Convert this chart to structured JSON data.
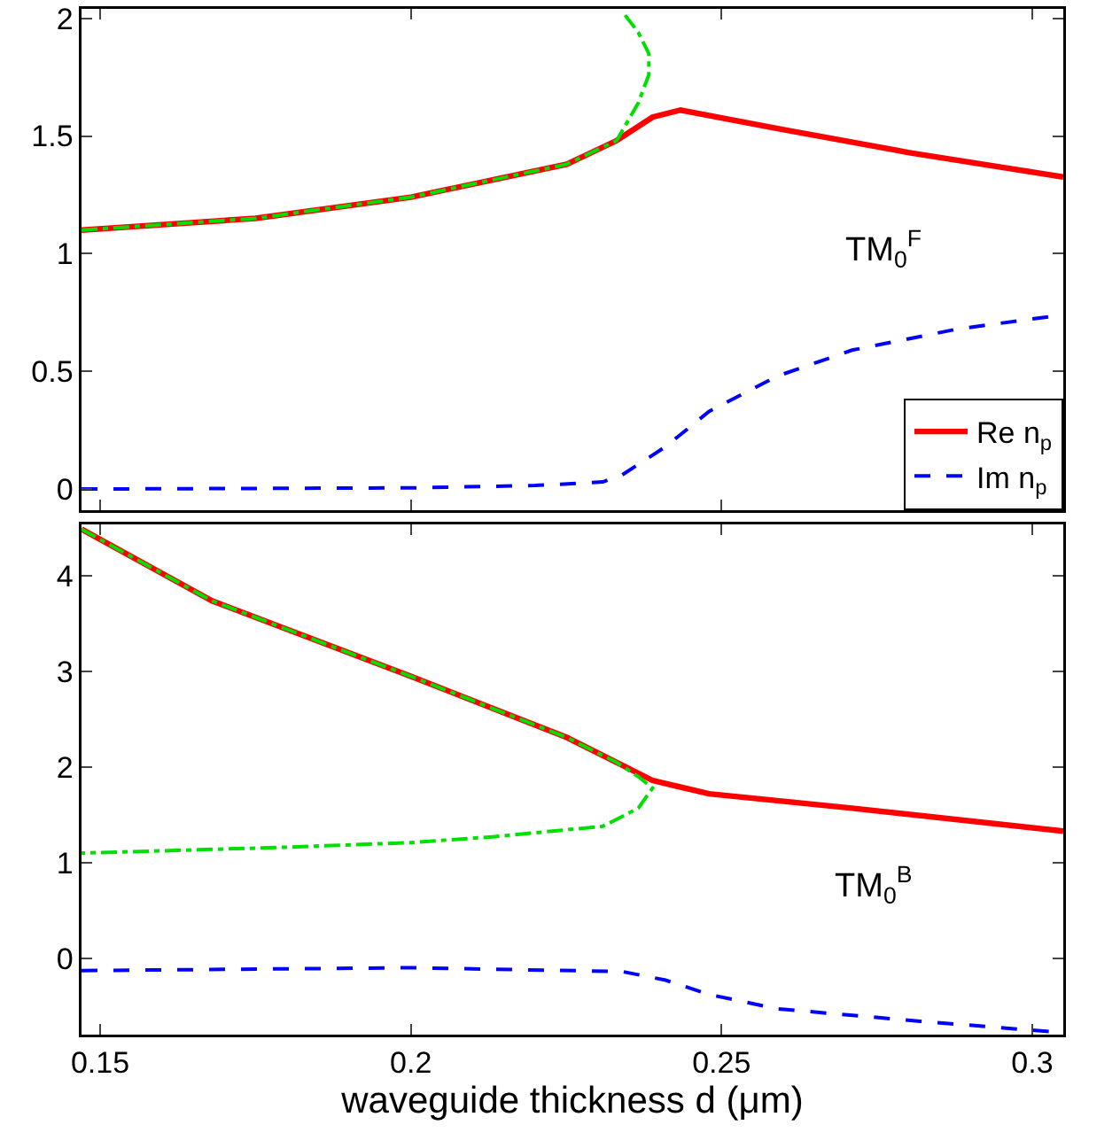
{
  "chart_data": [
    {
      "type": "line",
      "xlim": [
        0.147,
        0.305
      ],
      "xticks": [
        0.15,
        0.2,
        0.25,
        0.3
      ],
      "ylim": [
        -0.09,
        2.04
      ],
      "yticks": [
        0,
        0.5,
        1,
        1.5,
        2
      ],
      "tick_labels": "y",
      "grid": false,
      "legend": "bottom right",
      "annotations": [
        "TM$_{0}$$^{F}$"
      ],
      "series": [
        {
          "name": "Re n$_{p}$",
          "color": "#ff0000",
          "line_style": "solid",
          "x": [
            0.147,
            0.175,
            0.2,
            0.2251,
            0.2331,
            0.2389,
            0.2434,
            0.2594,
            0.28,
            0.305
          ],
          "values": [
            1.1,
            1.15,
            1.24,
            1.38,
            1.48,
            1.58,
            1.61,
            1.53,
            1.43,
            1.326
          ]
        },
        {
          "name": "Im n$_{p}$",
          "color": "#0000ff",
          "line_style": "dashed",
          "x": [
            0.147,
            0.2,
            0.22,
            0.2309,
            0.234,
            0.241,
            0.248,
            0.259,
            0.271,
            0.288,
            0.305
          ],
          "values": [
            0,
            0.005,
            0.015,
            0.03,
            0.06,
            0.18,
            0.33,
            0.48,
            0.59,
            0.68,
            0.74
          ]
        },
        {
          "color": "#00e000",
          "line_style": "dashdot",
          "x": [
            0.147,
            0.175,
            0.2,
            0.2251,
            0.2331,
            0.2366,
            0.2383,
            0.2383,
            0.2366,
            0.234
          ],
          "values": [
            1.1,
            1.15,
            1.24,
            1.38,
            1.48,
            1.64,
            1.76,
            1.85,
            1.94,
            2.03
          ]
        }
      ]
    },
    {
      "type": "line",
      "xlim": [
        0.147,
        0.305
      ],
      "xticks": [
        0.15,
        0.2,
        0.25,
        0.3
      ],
      "ylim": [
        -0.8,
        4.54
      ],
      "yticks": [
        0,
        1,
        2,
        3,
        4
      ],
      "grid": false,
      "legend": false,
      "xlabel": "waveguide thickness d (μm)",
      "annotations": [
        "TM$_{0}$$^{B}$"
      ],
      "series": [
        {
          "color": "#ff0000",
          "line_style": "solid",
          "x": [
            0.147,
            0.168,
            0.2,
            0.2251,
            0.2331,
            0.2389,
            0.248,
            0.271,
            0.305
          ],
          "values": [
            4.49,
            3.74,
            2.95,
            2.31,
            2.05,
            1.86,
            1.72,
            1.57,
            1.33
          ]
        },
        {
          "color": "#0000ff",
          "line_style": "dashed",
          "x": [
            0.147,
            0.2,
            0.234,
            0.241,
            0.248,
            0.259,
            0.282,
            0.305
          ],
          "values": [
            -0.13,
            -0.1,
            -0.14,
            -0.23,
            -0.38,
            -0.53,
            -0.66,
            -0.78
          ]
        },
        {
          "color": "#00e000",
          "line_style": "dashdot",
          "x": [
            0.147,
            0.168,
            0.2,
            0.2251,
            0.2331,
            0.2366,
            0.2389,
            0.2366,
            0.2309,
            0.2131,
            0.2,
            0.1794,
            0.147
          ],
          "values": [
            4.49,
            3.74,
            2.95,
            2.31,
            2.05,
            1.9,
            1.78,
            1.57,
            1.38,
            1.27,
            1.21,
            1.16,
            1.1
          ]
        }
      ]
    }
  ]
}
